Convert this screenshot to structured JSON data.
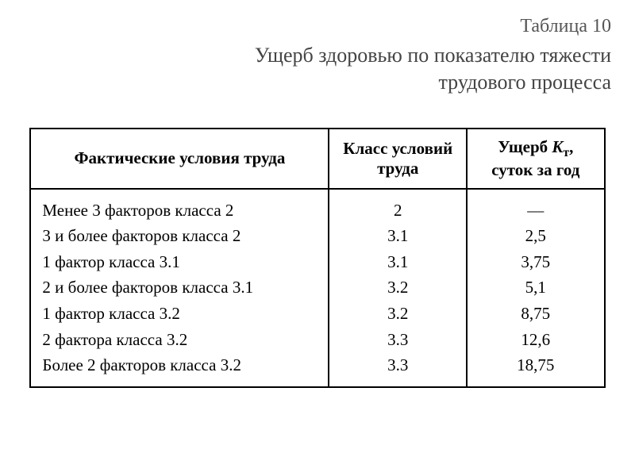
{
  "header": {
    "table_number": "Таблица 10",
    "title_line1": "Ущерб здоровью по показателю тяжести",
    "title_line2": "трудового процесса"
  },
  "table": {
    "columns": {
      "conditions": "Фактические условия труда",
      "class": "Класс условий труда",
      "damage_prefix": "Ущерб ",
      "damage_var": "K",
      "damage_sub": "т",
      "damage_suffix": ",",
      "damage_line2": "суток за год"
    },
    "rows": [
      {
        "condition": "Менее 3 факторов класса 2",
        "class": "2",
        "damage": "—"
      },
      {
        "condition": "3 и более факторов класса 2",
        "class": "3.1",
        "damage": "2,5"
      },
      {
        "condition": "1 фактор класса 3.1",
        "class": "3.1",
        "damage": "3,75"
      },
      {
        "condition": "2 и более факторов класса 3.1",
        "class": "3.2",
        "damage": "5,1"
      },
      {
        "condition": "1 фактор класса 3.2",
        "class": "3.2",
        "damage": "8,75"
      },
      {
        "condition": "2 фактора класса 3.2",
        "class": "3.3",
        "damage": "12,6"
      },
      {
        "condition": "Более 2 факторов класса 3.2",
        "class": "3.3",
        "damage": "18,75"
      }
    ],
    "styling": {
      "border_color": "#000000",
      "border_width": 2,
      "header_font_weight": "bold",
      "font_family": "Times New Roman, serif",
      "font_size_pt": 16,
      "background_color": "#ffffff",
      "column_widths_pct": [
        52,
        24,
        24
      ],
      "row_alignments": [
        "left",
        "center",
        "center"
      ]
    }
  }
}
